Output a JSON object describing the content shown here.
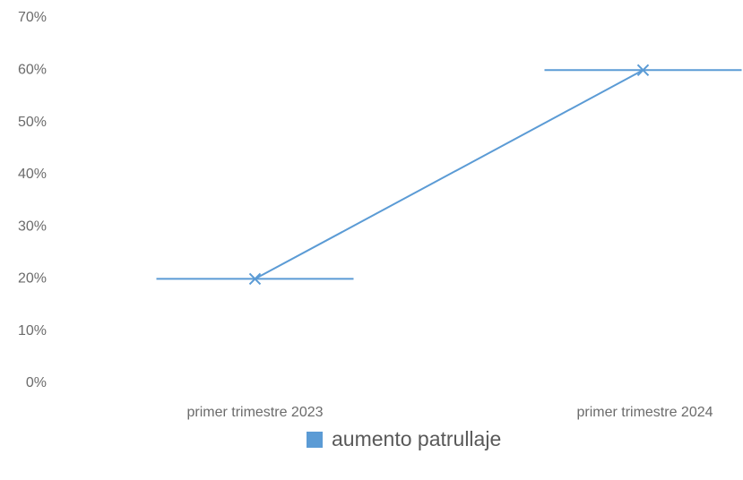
{
  "chart_data": {
    "type": "line",
    "categories": [
      "primer trimestre 2023",
      "primer trimestre 2024"
    ],
    "series": [
      {
        "name": "aumento patrullaje",
        "color": "#5b9bd5",
        "values": [
          20,
          60
        ],
        "marker": "x"
      }
    ],
    "ylim": [
      0,
      70
    ],
    "yticks": [
      {
        "value": 0,
        "label": "0%"
      },
      {
        "value": 10,
        "label": "10%"
      },
      {
        "value": 20,
        "label": "20%"
      },
      {
        "value": 30,
        "label": "30%"
      },
      {
        "value": 40,
        "label": "40%"
      },
      {
        "value": 50,
        "label": "50%"
      },
      {
        "value": 60,
        "label": "60%"
      },
      {
        "value": 70,
        "label": "70%"
      }
    ],
    "grid": false,
    "legend": "bottom"
  }
}
